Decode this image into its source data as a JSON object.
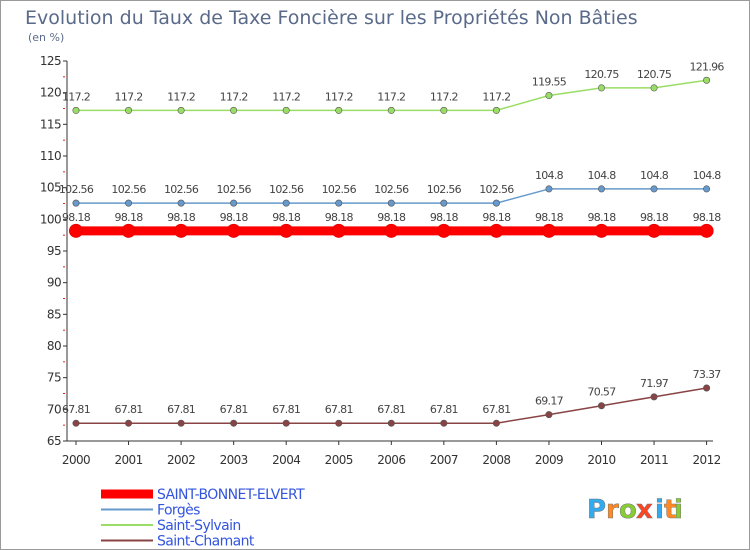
{
  "chart_data": {
    "type": "line",
    "title": "Evolution du Taux de Taxe Foncière sur les Propriétés Non Bâties",
    "subtitle": "(en %)",
    "x": [
      "2000",
      "2001",
      "2002",
      "2003",
      "2004",
      "2005",
      "2006",
      "2007",
      "2008",
      "2009",
      "2010",
      "2011",
      "2012"
    ],
    "ylim": [
      65,
      125
    ],
    "yticks": [
      65,
      70,
      75,
      80,
      85,
      90,
      95,
      100,
      105,
      110,
      115,
      120,
      125
    ],
    "series": [
      {
        "name": "SAINT-BONNET-ELVERT",
        "color": "#ff0000",
        "values": [
          98.18,
          98.18,
          98.18,
          98.18,
          98.18,
          98.18,
          98.18,
          98.18,
          98.18,
          98.18,
          98.18,
          98.18,
          98.18
        ],
        "labels": [
          "98.18",
          "98.18",
          "98.18",
          "98.18",
          "98.18",
          "98.18",
          "98.18",
          "98.18",
          "98.18",
          "98.18",
          "98.18",
          "98.18",
          "98.18"
        ]
      },
      {
        "name": "Forgès",
        "color": "#6699cc",
        "values": [
          102.56,
          102.56,
          102.56,
          102.56,
          102.56,
          102.56,
          102.56,
          102.56,
          102.56,
          104.8,
          104.8,
          104.8,
          104.8
        ],
        "labels": [
          "102.56",
          "102.56",
          "102.56",
          "102.56",
          "102.56",
          "102.56",
          "102.56",
          "102.56",
          "102.56",
          "104.8",
          "104.8",
          "104.8",
          "104.8"
        ]
      },
      {
        "name": "Saint-Sylvain",
        "color": "#99dd66",
        "values": [
          117.2,
          117.2,
          117.2,
          117.2,
          117.2,
          117.2,
          117.2,
          117.2,
          117.2,
          119.55,
          120.75,
          120.75,
          121.96
        ],
        "labels": [
          "117.2",
          "117.2",
          "117.2",
          "117.2",
          "117.2",
          "117.2",
          "117.2",
          "117.2",
          "117.2",
          "119.55",
          "120.75",
          "120.75",
          "121.96"
        ]
      },
      {
        "name": "Saint-Chamant",
        "color": "#884444",
        "values": [
          67.81,
          67.81,
          67.81,
          67.81,
          67.81,
          67.81,
          67.81,
          67.81,
          67.81,
          69.17,
          70.57,
          71.97,
          73.37
        ],
        "labels": [
          "67.81",
          "67.81",
          "67.81",
          "67.81",
          "67.81",
          "67.81",
          "67.81",
          "67.81",
          "67.81",
          "69.17",
          "70.57",
          "71.97",
          "73.37"
        ]
      }
    ],
    "grid": false,
    "legend": "bottom-left"
  },
  "logo": {
    "letters": [
      "P",
      "r",
      "o",
      "x",
      "i",
      "t",
      "i"
    ],
    "colors": [
      "#33aaee",
      "#ff8822",
      "#88cc33",
      "#ff4422",
      "#33aaee",
      "#ff8822",
      "#88cc33"
    ]
  }
}
